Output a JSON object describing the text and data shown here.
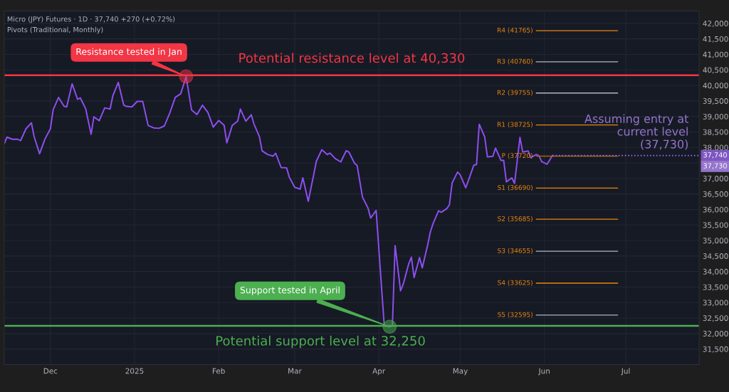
{
  "chart_data": {
    "type": "line",
    "title": "Micro (JPY) Futures · 1D · 37,740 +270 (+0.72%)",
    "subtitle": "Pivots (Traditional, Monthly)",
    "xlim": [
      "2024-11-14",
      "2025-07-28"
    ],
    "xticks": [
      {
        "value": "2024-12-01",
        "label": "Dec"
      },
      {
        "value": "2025-01-01",
        "label": "2025"
      },
      {
        "value": "2025-02-01",
        "label": "Feb"
      },
      {
        "value": "2025-03-01",
        "label": "Mar"
      },
      {
        "value": "2025-04-01",
        "label": "Apr"
      },
      {
        "value": "2025-05-01",
        "label": "May"
      },
      {
        "value": "2025-06-01",
        "label": "Jun"
      },
      {
        "value": "2025-07-01",
        "label": "Jul"
      }
    ],
    "ylim": [
      31000,
      42400
    ],
    "yticks": [
      {
        "value": 31500,
        "label": "31,500"
      },
      {
        "value": 32000,
        "label": "32,000"
      },
      {
        "value": 32500,
        "label": "32,500"
      },
      {
        "value": 33000,
        "label": "33,000"
      },
      {
        "value": 33500,
        "label": "33,500"
      },
      {
        "value": 34000,
        "label": "34,000"
      },
      {
        "value": 34500,
        "label": "34,500"
      },
      {
        "value": 35000,
        "label": "35,000"
      },
      {
        "value": 35500,
        "label": "35,500"
      },
      {
        "value": 36000,
        "label": "36,000"
      },
      {
        "value": 36500,
        "label": "36,500"
      },
      {
        "value": 37000,
        "label": "37,000"
      },
      {
        "value": 37500,
        "label": null
      },
      {
        "value": 38000,
        "label": "38,000"
      },
      {
        "value": 38500,
        "label": "38,500"
      },
      {
        "value": 39000,
        "label": "39,000"
      },
      {
        "value": 39500,
        "label": "39,500"
      },
      {
        "value": 40000,
        "label": "40,000"
      },
      {
        "value": 40500,
        "label": "40,500"
      },
      {
        "value": 41000,
        "label": "41,000"
      },
      {
        "value": 41500,
        "label": "41,500"
      },
      {
        "value": 42000,
        "label": "42,000"
      }
    ],
    "grid": true,
    "legend": false,
    "marker": "none",
    "line_style": "solid",
    "series": [
      {
        "color": "#8f4ff2",
        "x": [
          "2024-11-14",
          "2024-11-15",
          "2024-11-17",
          "2024-11-19",
          "2024-11-20",
          "2024-11-22",
          "2024-11-24",
          "2024-11-25",
          "2024-11-27",
          "2024-11-29",
          "2024-12-01",
          "2024-12-02",
          "2024-12-04",
          "2024-12-06",
          "2024-12-07",
          "2024-12-09",
          "2024-12-11",
          "2024-12-12",
          "2024-12-14",
          "2024-12-16",
          "2024-12-17",
          "2024-12-19",
          "2024-12-21",
          "2024-12-23",
          "2024-12-24",
          "2024-12-26",
          "2024-12-28",
          "2024-12-29",
          "2024-12-31",
          "2025-01-02",
          "2025-01-04",
          "2025-01-06",
          "2025-01-08",
          "2025-01-10",
          "2025-01-12",
          "2025-01-14",
          "2025-01-16",
          "2025-01-18",
          "2025-01-20",
          "2025-01-22",
          "2025-01-24",
          "2025-01-26",
          "2025-01-28",
          "2025-01-30",
          "2025-02-01",
          "2025-02-03",
          "2025-02-04",
          "2025-02-06",
          "2025-02-08",
          "2025-02-09",
          "2025-02-11",
          "2025-02-13",
          "2025-02-14",
          "2025-02-16",
          "2025-02-17",
          "2025-02-19",
          "2025-02-21",
          "2025-02-22",
          "2025-02-24",
          "2025-02-26",
          "2025-02-27",
          "2025-03-01",
          "2025-03-03",
          "2025-03-04",
          "2025-03-06",
          "2025-03-08",
          "2025-03-09",
          "2025-03-11",
          "2025-03-13",
          "2025-03-14",
          "2025-03-16",
          "2025-03-18",
          "2025-03-20",
          "2025-03-21",
          "2025-03-23",
          "2025-03-24",
          "2025-03-26",
          "2025-03-28",
          "2025-03-29",
          "2025-03-31",
          "2025-04-03",
          "2025-04-05",
          "2025-04-06",
          "2025-04-07",
          "2025-04-09",
          "2025-04-10",
          "2025-04-12",
          "2025-04-13",
          "2025-04-14",
          "2025-04-16",
          "2025-04-17",
          "2025-04-19",
          "2025-04-20",
          "2025-04-21",
          "2025-04-23",
          "2025-04-24",
          "2025-04-26",
          "2025-04-27",
          "2025-04-28",
          "2025-04-30",
          "2025-05-01",
          "2025-05-03",
          "2025-05-04",
          "2025-05-06",
          "2025-05-07",
          "2025-05-08",
          "2025-05-10",
          "2025-05-11",
          "2025-05-13",
          "2025-05-14",
          "2025-05-16",
          "2025-05-17",
          "2025-05-18",
          "2025-05-20",
          "2025-05-21",
          "2025-05-23",
          "2025-05-24",
          "2025-05-26",
          "2025-05-27",
          "2025-05-29",
          "2025-05-30",
          "2025-05-31",
          "2025-06-02",
          "2025-06-04"
        ],
        "values": [
          38119,
          38333,
          38264,
          38264,
          38218,
          38602,
          38794,
          38349,
          37796,
          38272,
          38602,
          39215,
          39614,
          39330,
          39307,
          40051,
          39553,
          39599,
          39246,
          38425,
          38985,
          38863,
          39277,
          39238,
          39668,
          40097,
          39369,
          39323,
          39307,
          39484,
          39484,
          38709,
          38632,
          38617,
          38694,
          39116,
          39614,
          39729,
          40289,
          39208,
          39062,
          39361,
          39131,
          38655,
          38870,
          38717,
          38149,
          38709,
          38847,
          39238,
          38847,
          39054,
          38755,
          38349,
          37889,
          37773,
          37720,
          37812,
          37352,
          37344,
          37045,
          36715,
          36654,
          37022,
          36262,
          37121,
          37559,
          37927,
          37773,
          37819,
          37635,
          37536,
          37896,
          37850,
          37497,
          37420,
          36393,
          36048,
          35726,
          35971,
          32250,
          32220,
          32260,
          34836,
          33379,
          33593,
          34245,
          34460,
          33808,
          34452,
          34115,
          34859,
          35281,
          35549,
          35956,
          35910,
          36025,
          36147,
          36853,
          37206,
          37114,
          36700,
          36930,
          37428,
          37451,
          38747,
          38341,
          37697,
          37712,
          37980,
          37582,
          37582,
          36891,
          37021,
          36837,
          38325,
          37850,
          37888,
          37673,
          37773,
          37735,
          37543,
          37459,
          37740
        ]
      },
      {
        "name": "R4 (41765)",
        "color": "#e8850c",
        "x": [
          "2025-05-29",
          "2025-06-28"
        ],
        "values": [
          41765,
          41765
        ]
      },
      {
        "name": "R3 (40760)",
        "color": "#b2b5be",
        "x": [
          "2025-05-29",
          "2025-06-28"
        ],
        "values": [
          40760,
          40760
        ]
      },
      {
        "name": "R2 (39755)",
        "color": "#b2b5be",
        "x": [
          "2025-05-29",
          "2025-06-28"
        ],
        "values": [
          39755,
          39755
        ]
      },
      {
        "name": "R1 (38725)",
        "color": "#e8850c",
        "x": [
          "2025-05-29",
          "2025-06-28"
        ],
        "values": [
          38725,
          38725
        ]
      },
      {
        "name": "P (37720)",
        "color": "#a8620e",
        "x": [
          "2025-05-29",
          "2025-06-28"
        ],
        "values": [
          37720,
          37720
        ]
      },
      {
        "name": "S1 (36690)",
        "color": "#e8850c",
        "x": [
          "2025-05-29",
          "2025-06-28"
        ],
        "values": [
          36690,
          36690
        ]
      },
      {
        "name": "S2 (35685)",
        "color": "#e8850c",
        "x": [
          "2025-05-29",
          "2025-06-28"
        ],
        "values": [
          35685,
          35685
        ]
      },
      {
        "name": "S3 (34655)",
        "color": "#b2b5be",
        "x": [
          "2025-05-29",
          "2025-06-28"
        ],
        "values": [
          34655,
          34655
        ]
      },
      {
        "name": "S4 (33625)",
        "color": "#e8850c",
        "x": [
          "2025-05-29",
          "2025-06-28"
        ],
        "values": [
          33625,
          33625
        ]
      },
      {
        "name": "S5 (32595)",
        "color": "#b2b5be",
        "x": [
          "2025-05-29",
          "2025-06-28"
        ],
        "values": [
          32595,
          32595
        ]
      }
    ],
    "ref_lines": [
      {
        "axis": "y",
        "value": 40330,
        "label": "Potential resistance level at 40,330",
        "color": "#f23645",
        "line_style": "solid"
      },
      {
        "axis": "y",
        "value": 32250,
        "label": "Potential support level at 32,250",
        "color": "#4caf50",
        "line_style": "solid"
      },
      {
        "axis": "y",
        "value": 37740,
        "color": "#9b6cf2",
        "line_style": "dotted"
      }
    ],
    "annotations": [
      {
        "text": "Resistance tested in Jan",
        "x": "2025-01-20",
        "y": 40289
      },
      {
        "text": "Support tested in April",
        "x": "2025-04-05",
        "y": 32220
      },
      "Assuming entry at\ncurrent level\n(37,730)",
      "37,740",
      "37,730"
    ]
  }
}
